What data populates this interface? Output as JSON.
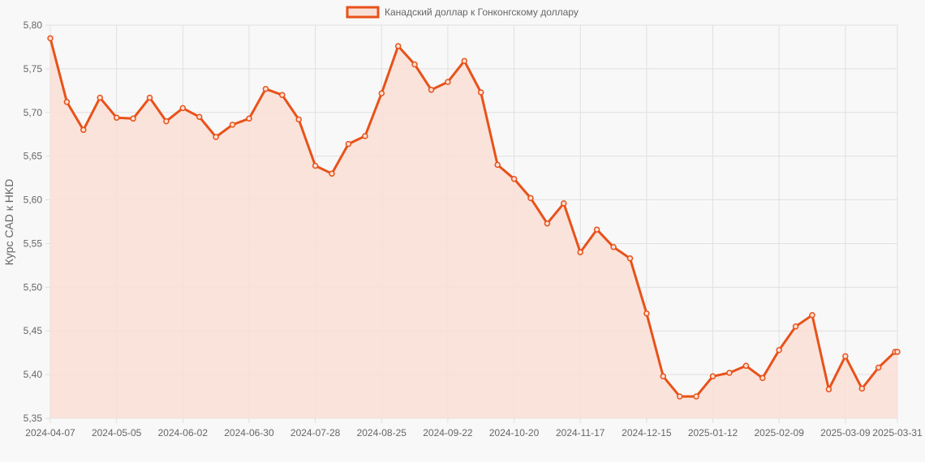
{
  "chart_data": {
    "type": "line",
    "legend_position": "top",
    "grid": true,
    "ylabel": "Курс CAD к HKD",
    "xlabel": "",
    "ylim": [
      5.35,
      5.8
    ],
    "y_ticks": [
      "5,35",
      "5,40",
      "5,45",
      "5,50",
      "5,55",
      "5,60",
      "5,65",
      "5,70",
      "5,75",
      "5,80"
    ],
    "x_ticks": [
      "2024-04-07",
      "2024-05-05",
      "2024-06-02",
      "2024-06-30",
      "2024-07-28",
      "2024-08-25",
      "2024-09-22",
      "2024-10-20",
      "2024-11-17",
      "2024-12-15",
      "2025-01-12",
      "2025-02-09",
      "2025-03-09",
      "2025-03-31"
    ],
    "colors": {
      "line": "#e8521a",
      "fill": "#f9e0d6",
      "grid": "#e0e0e0",
      "background": "#f8f8f8"
    },
    "series": [
      {
        "name": "Канадский доллар к Гонконгскому доллару",
        "x": [
          "2024-04-07",
          "2024-04-14",
          "2024-04-21",
          "2024-04-28",
          "2024-05-05",
          "2024-05-12",
          "2024-05-19",
          "2024-05-26",
          "2024-06-02",
          "2024-06-09",
          "2024-06-16",
          "2024-06-23",
          "2024-06-30",
          "2024-07-07",
          "2024-07-14",
          "2024-07-21",
          "2024-07-28",
          "2024-08-04",
          "2024-08-11",
          "2024-08-18",
          "2024-08-25",
          "2024-09-01",
          "2024-09-08",
          "2024-09-15",
          "2024-09-22",
          "2024-09-29",
          "2024-10-06",
          "2024-10-13",
          "2024-10-20",
          "2024-10-27",
          "2024-11-03",
          "2024-11-10",
          "2024-11-17",
          "2024-11-24",
          "2024-12-01",
          "2024-12-08",
          "2024-12-15",
          "2024-12-22",
          "2024-12-29",
          "2025-01-05",
          "2025-01-12",
          "2025-01-19",
          "2025-01-26",
          "2025-02-02",
          "2025-02-09",
          "2025-02-16",
          "2025-02-23",
          "2025-03-02",
          "2025-03-09",
          "2025-03-16",
          "2025-03-23",
          "2025-03-30",
          "2025-03-31"
        ],
        "values": [
          5.785,
          5.712,
          5.68,
          5.717,
          5.694,
          5.693,
          5.717,
          5.69,
          5.705,
          5.695,
          5.672,
          5.686,
          5.693,
          5.727,
          5.72,
          5.692,
          5.639,
          5.63,
          5.664,
          5.673,
          5.722,
          5.776,
          5.755,
          5.726,
          5.735,
          5.759,
          5.723,
          5.64,
          5.624,
          5.602,
          5.573,
          5.596,
          5.54,
          5.566,
          5.546,
          5.533,
          5.47,
          5.398,
          5.375,
          5.375,
          5.398,
          5.402,
          5.41,
          5.396,
          5.428,
          5.455,
          5.468,
          5.383,
          5.421,
          5.384,
          5.408,
          5.426,
          5.426
        ]
      }
    ]
  }
}
